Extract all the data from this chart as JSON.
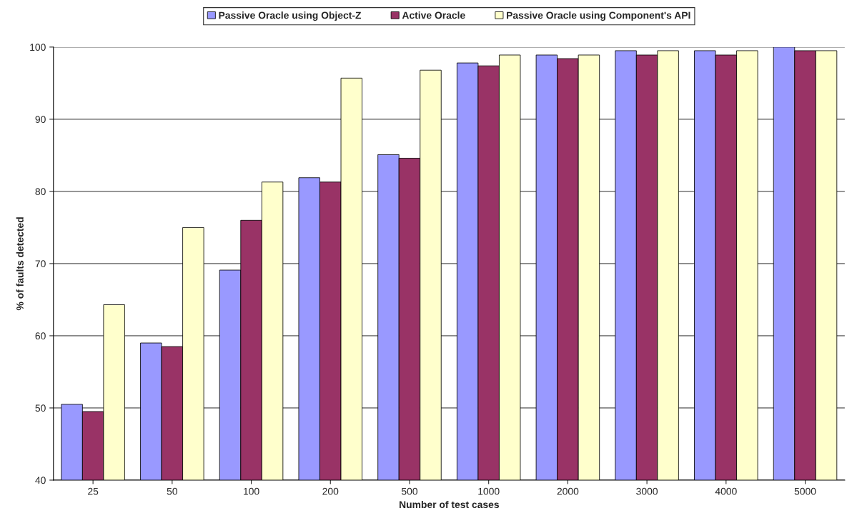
{
  "chart_data": {
    "type": "bar",
    "xlabel": "Number of test cases",
    "ylabel": "% of faults detected",
    "categories": [
      "25",
      "50",
      "100",
      "200",
      "500",
      "1000",
      "2000",
      "3000",
      "4000",
      "5000"
    ],
    "series": [
      {
        "name": "Passive Oracle using Object-Z",
        "color": "#9999ff",
        "values": [
          50.5,
          59.0,
          69.1,
          81.9,
          85.1,
          97.8,
          98.9,
          99.5,
          99.5,
          100
        ]
      },
      {
        "name": "Active Oracle",
        "color": "#993366",
        "values": [
          49.5,
          58.5,
          76.0,
          81.3,
          84.6,
          97.4,
          98.4,
          98.9,
          98.9,
          99.5
        ]
      },
      {
        "name": "Passive Oracle using Component's API",
        "color": "#ffffcc",
        "values": [
          64.3,
          75.0,
          81.3,
          95.7,
          96.8,
          98.9,
          98.9,
          99.5,
          99.5,
          99.5
        ]
      }
    ],
    "ylim": [
      40,
      100
    ],
    "yticks": [
      40,
      50,
      60,
      70,
      80,
      90,
      100
    ],
    "grid": "y",
    "legend": "top"
  }
}
